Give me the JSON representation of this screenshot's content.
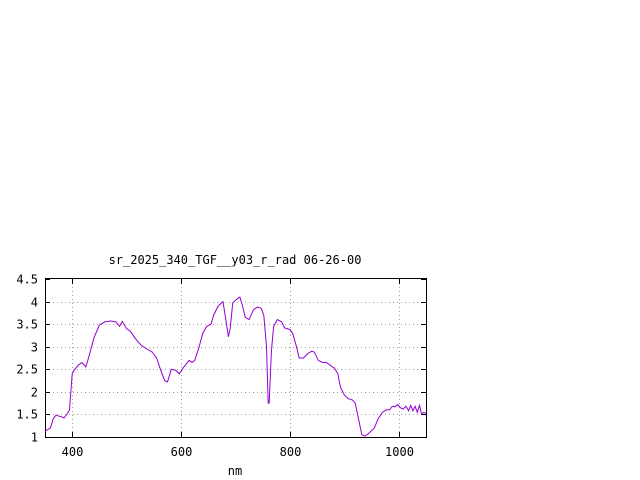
{
  "chart_data": {
    "type": "line",
    "title": "sr_2025_340_TGF__y03_r_rad 06-26-00",
    "xlabel": "nm",
    "ylabel": "",
    "xlim": [
      350,
      1050
    ],
    "ylim": [
      1,
      4.5
    ],
    "x_ticks": [
      400,
      600,
      800,
      1000
    ],
    "y_ticks": [
      1,
      1.5,
      2,
      2.5,
      3,
      3.5,
      4,
      4.5
    ],
    "x_tick_labels": [
      "400",
      "600",
      "800",
      "1000"
    ],
    "y_tick_labels": [
      "1",
      "1.5",
      "2",
      "2.5",
      "3",
      "3.5",
      "4",
      "4.5"
    ],
    "grid": true,
    "line_color": "#9400d3",
    "series": [
      {
        "name": "",
        "points": [
          [
            350,
            1.13
          ],
          [
            360,
            1.2
          ],
          [
            365,
            1.4
          ],
          [
            370,
            1.48
          ],
          [
            380,
            1.45
          ],
          [
            385,
            1.42
          ],
          [
            390,
            1.5
          ],
          [
            395,
            1.6
          ],
          [
            400,
            2.4
          ],
          [
            405,
            2.5
          ],
          [
            412,
            2.6
          ],
          [
            418,
            2.65
          ],
          [
            425,
            2.55
          ],
          [
            430,
            2.75
          ],
          [
            440,
            3.2
          ],
          [
            450,
            3.48
          ],
          [
            460,
            3.55
          ],
          [
            470,
            3.57
          ],
          [
            480,
            3.55
          ],
          [
            487,
            3.45
          ],
          [
            492,
            3.56
          ],
          [
            500,
            3.4
          ],
          [
            507,
            3.34
          ],
          [
            515,
            3.2
          ],
          [
            520,
            3.12
          ],
          [
            528,
            3.02
          ],
          [
            537,
            2.95
          ],
          [
            547,
            2.88
          ],
          [
            555,
            2.75
          ],
          [
            562,
            2.5
          ],
          [
            570,
            2.25
          ],
          [
            575,
            2.22
          ],
          [
            582,
            2.5
          ],
          [
            590,
            2.48
          ],
          [
            597,
            2.4
          ],
          [
            605,
            2.55
          ],
          [
            615,
            2.7
          ],
          [
            620,
            2.65
          ],
          [
            625,
            2.7
          ],
          [
            632,
            2.95
          ],
          [
            640,
            3.3
          ],
          [
            647,
            3.45
          ],
          [
            655,
            3.5
          ],
          [
            660,
            3.7
          ],
          [
            668,
            3.9
          ],
          [
            677,
            4.0
          ],
          [
            683,
            3.55
          ],
          [
            687,
            3.22
          ],
          [
            690,
            3.4
          ],
          [
            695,
            3.97
          ],
          [
            702,
            4.05
          ],
          [
            708,
            4.1
          ],
          [
            713,
            3.9
          ],
          [
            718,
            3.65
          ],
          [
            725,
            3.6
          ],
          [
            733,
            3.82
          ],
          [
            740,
            3.88
          ],
          [
            747,
            3.85
          ],
          [
            752,
            3.7
          ],
          [
            757,
            3.0
          ],
          [
            760,
            1.75
          ],
          [
            762,
            1.75
          ],
          [
            766,
            2.9
          ],
          [
            770,
            3.45
          ],
          [
            777,
            3.6
          ],
          [
            785,
            3.55
          ],
          [
            790,
            3.42
          ],
          [
            800,
            3.38
          ],
          [
            805,
            3.3
          ],
          [
            812,
            3.0
          ],
          [
            817,
            2.75
          ],
          [
            825,
            2.75
          ],
          [
            833,
            2.85
          ],
          [
            840,
            2.9
          ],
          [
            845,
            2.88
          ],
          [
            852,
            2.7
          ],
          [
            860,
            2.65
          ],
          [
            867,
            2.65
          ],
          [
            875,
            2.58
          ],
          [
            882,
            2.52
          ],
          [
            888,
            2.4
          ],
          [
            893,
            2.1
          ],
          [
            900,
            1.93
          ],
          [
            907,
            1.85
          ],
          [
            915,
            1.82
          ],
          [
            920,
            1.75
          ],
          [
            926,
            1.4
          ],
          [
            932,
            1.05
          ],
          [
            937,
            1.02
          ],
          [
            942,
            1.05
          ],
          [
            948,
            1.12
          ],
          [
            955,
            1.2
          ],
          [
            962,
            1.4
          ],
          [
            970,
            1.55
          ],
          [
            977,
            1.6
          ],
          [
            983,
            1.6
          ],
          [
            988,
            1.68
          ],
          [
            993,
            1.67
          ],
          [
            998,
            1.72
          ],
          [
            1003,
            1.65
          ],
          [
            1008,
            1.62
          ],
          [
            1013,
            1.68
          ],
          [
            1018,
            1.58
          ],
          [
            1022,
            1.7
          ],
          [
            1026,
            1.58
          ],
          [
            1030,
            1.68
          ],
          [
            1034,
            1.55
          ],
          [
            1038,
            1.7
          ],
          [
            1042,
            1.5
          ],
          [
            1046,
            1.55
          ],
          [
            1050,
            1.52
          ]
        ]
      }
    ]
  }
}
